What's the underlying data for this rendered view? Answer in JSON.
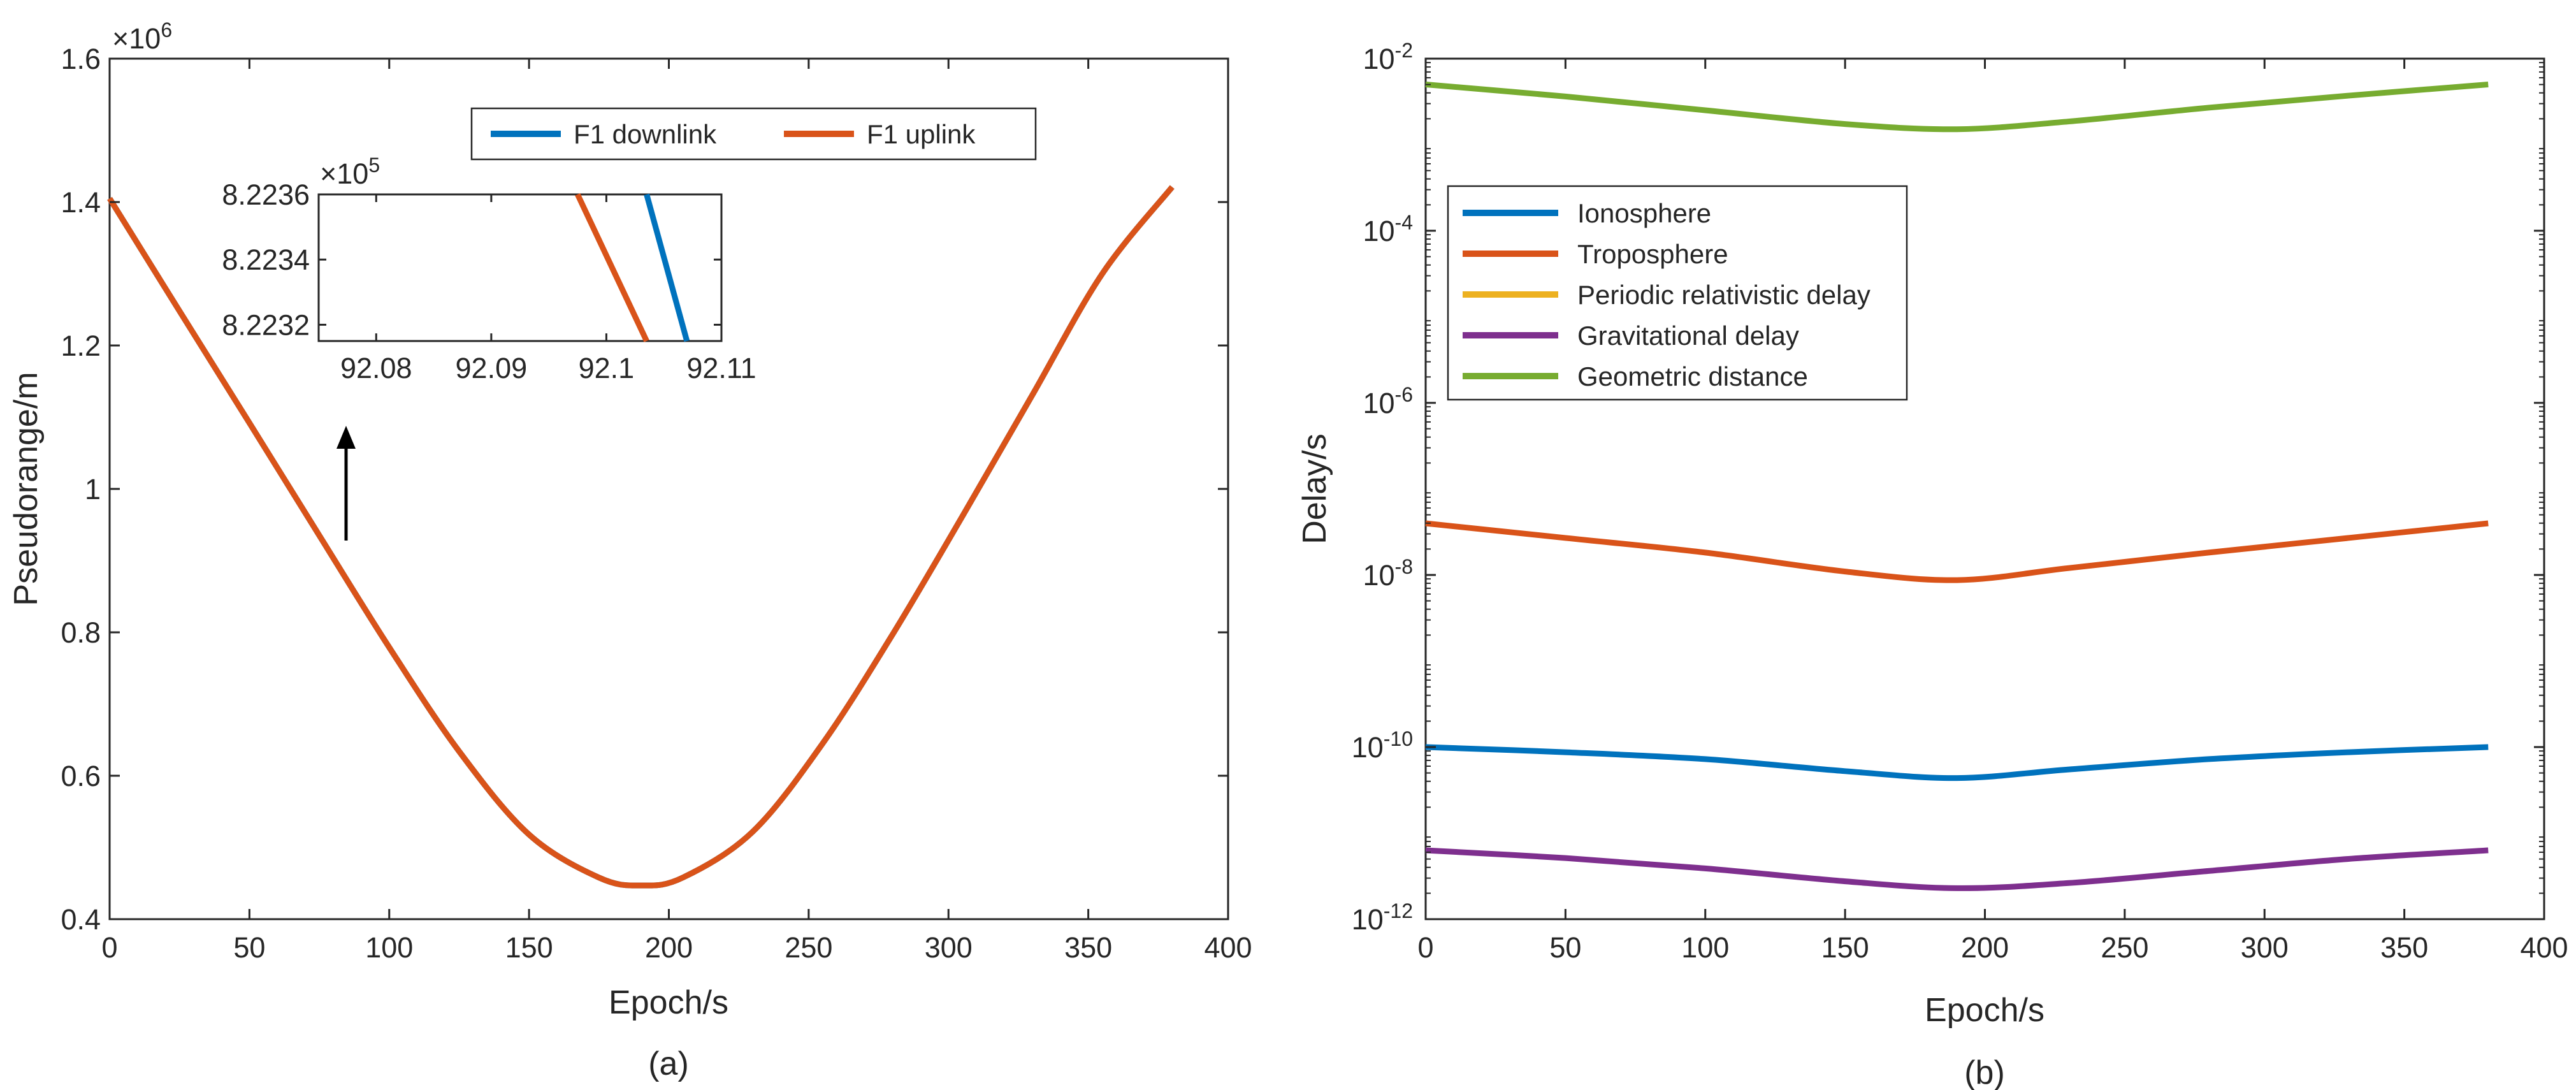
{
  "chart_data": [
    {
      "type": "line",
      "panel_label": "(a)",
      "xlabel": "Epoch/s",
      "ylabel": "Pseudorange/m",
      "y_exponent": "×10",
      "y_exponent_power": "6",
      "xlim": [
        0,
        400
      ],
      "ylim": [
        0.4,
        1.6
      ],
      "xticks": [
        "0",
        "50",
        "100",
        "150",
        "200",
        "250",
        "300",
        "350",
        "400"
      ],
      "yticks": [
        "0.4",
        "0.6",
        "0.8",
        "1",
        "1.2",
        "1.4",
        "1.6"
      ],
      "legend": {
        "location": "top-center",
        "entries": [
          "F1 downlink",
          "F1 uplink"
        ]
      },
      "colors": {
        "downlink": "#0072BD",
        "uplink": "#D95319"
      },
      "series": [
        {
          "name": "F1 downlink",
          "x": [
            0,
            25,
            50,
            75,
            100,
            125,
            150,
            175,
            190,
            205,
            230,
            255,
            280,
            305,
            330,
            355,
            380
          ],
          "y": [
            1.405,
            1.248,
            1.092,
            0.935,
            0.779,
            0.634,
            0.518,
            0.458,
            0.447,
            0.458,
            0.522,
            0.645,
            0.797,
            0.962,
            1.131,
            1.3,
            1.421
          ]
        },
        {
          "name": "F1 uplink",
          "x": [
            0,
            25,
            50,
            75,
            100,
            125,
            150,
            175,
            190,
            205,
            230,
            255,
            280,
            305,
            330,
            355,
            380
          ],
          "y": [
            1.405,
            1.248,
            1.092,
            0.935,
            0.779,
            0.634,
            0.518,
            0.458,
            0.447,
            0.458,
            0.522,
            0.645,
            0.797,
            0.962,
            1.131,
            1.3,
            1.421
          ]
        }
      ],
      "annotations": [
        "arrow pointing up toward inset"
      ],
      "inset": {
        "xlim": [
          92.075,
          92.11
        ],
        "ylim": [
          8.22315,
          8.2236
        ],
        "xticks": [
          "92.08",
          "92.09",
          "92.1",
          "92.11"
        ],
        "yticks": [
          "8.2232",
          "8.2234",
          "8.2236"
        ],
        "y_exponent": "×10",
        "y_exponent_power": "5",
        "series": [
          {
            "name": "F1 downlink",
            "x": [
              92.1035,
              92.107
            ],
            "y": [
              8.2236,
              8.22315
            ]
          },
          {
            "name": "F1 uplink",
            "x": [
              92.0975,
              92.1035
            ],
            "y": [
              8.2236,
              8.22315
            ]
          }
        ]
      }
    },
    {
      "type": "line",
      "panel_label": "(b)",
      "xlabel": "Epoch/s",
      "ylabel": "Delay/s",
      "yscale": "log",
      "xlim": [
        0,
        400
      ],
      "ylim_exponent": [
        -12,
        -2
      ],
      "xticks": [
        "0",
        "50",
        "100",
        "150",
        "200",
        "250",
        "300",
        "350",
        "400"
      ],
      "yticks": [
        {
          "base": "10",
          "exp": "-12"
        },
        {
          "base": "10",
          "exp": "-10"
        },
        {
          "base": "10",
          "exp": "-8"
        },
        {
          "base": "10",
          "exp": "-6"
        },
        {
          "base": "10",
          "exp": "-4"
        },
        {
          "base": "10",
          "exp": "-2"
        }
      ],
      "legend": {
        "location": "top-left",
        "entries": [
          "Ionosphere",
          "Troposphere",
          "Periodic relativistic delay",
          "Gravitational delay",
          "Geometric distance"
        ]
      },
      "colors": {
        "Ionosphere": "#0072BD",
        "Troposphere": "#D95319",
        "Periodic relativistic delay": "#EDB120",
        "Gravitational delay": "#7E2F8E",
        "Geometric distance": "#77AC30"
      },
      "series": [
        {
          "name": "Ionosphere",
          "x": [
            0,
            50,
            100,
            150,
            190,
            230,
            280,
            330,
            380
          ],
          "y_log10": [
            -10.0,
            -10.06,
            -10.14,
            -10.28,
            -10.36,
            -10.26,
            -10.14,
            -10.06,
            -10.0
          ]
        },
        {
          "name": "Troposphere",
          "x": [
            0,
            50,
            100,
            150,
            190,
            230,
            280,
            330,
            380
          ],
          "y_log10": [
            -7.4,
            -7.57,
            -7.74,
            -7.96,
            -8.06,
            -7.92,
            -7.74,
            -7.57,
            -7.4
          ]
        },
        {
          "name": "Periodic relativistic delay",
          "x": [],
          "y_log10": []
        },
        {
          "name": "Gravitational delay",
          "x": [
            0,
            50,
            100,
            150,
            190,
            230,
            280,
            330,
            380
          ],
          "y_log10": [
            -11.2,
            -11.29,
            -11.41,
            -11.56,
            -11.64,
            -11.58,
            -11.44,
            -11.3,
            -11.2
          ]
        },
        {
          "name": "Geometric distance",
          "x": [
            0,
            50,
            100,
            150,
            190,
            230,
            280,
            330,
            380
          ],
          "y_log10": [
            -2.3,
            -2.44,
            -2.6,
            -2.76,
            -2.82,
            -2.73,
            -2.57,
            -2.43,
            -2.3
          ]
        }
      ]
    }
  ]
}
